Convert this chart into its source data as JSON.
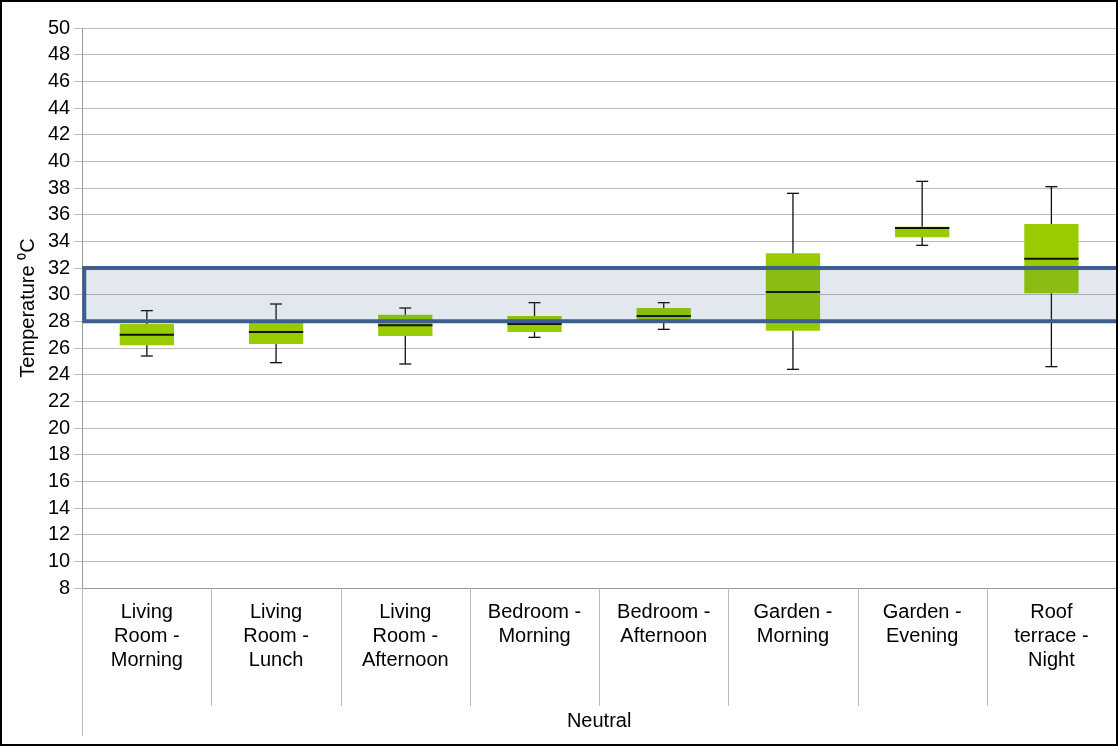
{
  "chart_data": {
    "type": "box",
    "ylabel": "Temperature ⁰C",
    "xlabel": "Neutral",
    "categories": [
      "Living Room - Morning",
      "Living Room - Lunch",
      "Living Room - Afternoon",
      "Bedroom - Morning",
      "Bedroom - Afternoon",
      "Garden - Morning",
      "Garden - Evening",
      "Roof terrace - Night"
    ],
    "color": "#99cc00",
    "boxes": [
      {
        "low": 25.4,
        "q1": 26.2,
        "median": 27.0,
        "q3": 27.8,
        "high": 28.8
      },
      {
        "low": 24.9,
        "q1": 26.3,
        "median": 27.2,
        "q3": 28.1,
        "high": 29.3
      },
      {
        "low": 24.8,
        "q1": 26.9,
        "median": 27.7,
        "q3": 28.5,
        "high": 29.0
      },
      {
        "low": 26.8,
        "q1": 27.2,
        "median": 27.8,
        "q3": 28.4,
        "high": 29.4
      },
      {
        "low": 27.4,
        "q1": 28.1,
        "median": 28.4,
        "q3": 29.0,
        "high": 29.4
      },
      {
        "low": 24.4,
        "q1": 27.3,
        "median": 30.2,
        "q3": 33.1,
        "high": 37.6
      },
      {
        "low": 33.7,
        "q1": 34.3,
        "median": 35.0,
        "q3": 35.1,
        "high": 38.5
      },
      {
        "low": 24.6,
        "q1": 30.1,
        "median": 32.7,
        "q3": 35.3,
        "high": 38.1
      }
    ],
    "ylim": [
      8,
      50
    ],
    "yticks": [
      8,
      10,
      12,
      14,
      16,
      18,
      20,
      22,
      24,
      26,
      28,
      30,
      32,
      34,
      36,
      38,
      40,
      42,
      44,
      46,
      48,
      50
    ],
    "bands": [
      {
        "axis": "y",
        "from": 28,
        "to": 32,
        "color": "#3c5f8f"
      }
    ],
    "grid": "y",
    "legend": false
  }
}
